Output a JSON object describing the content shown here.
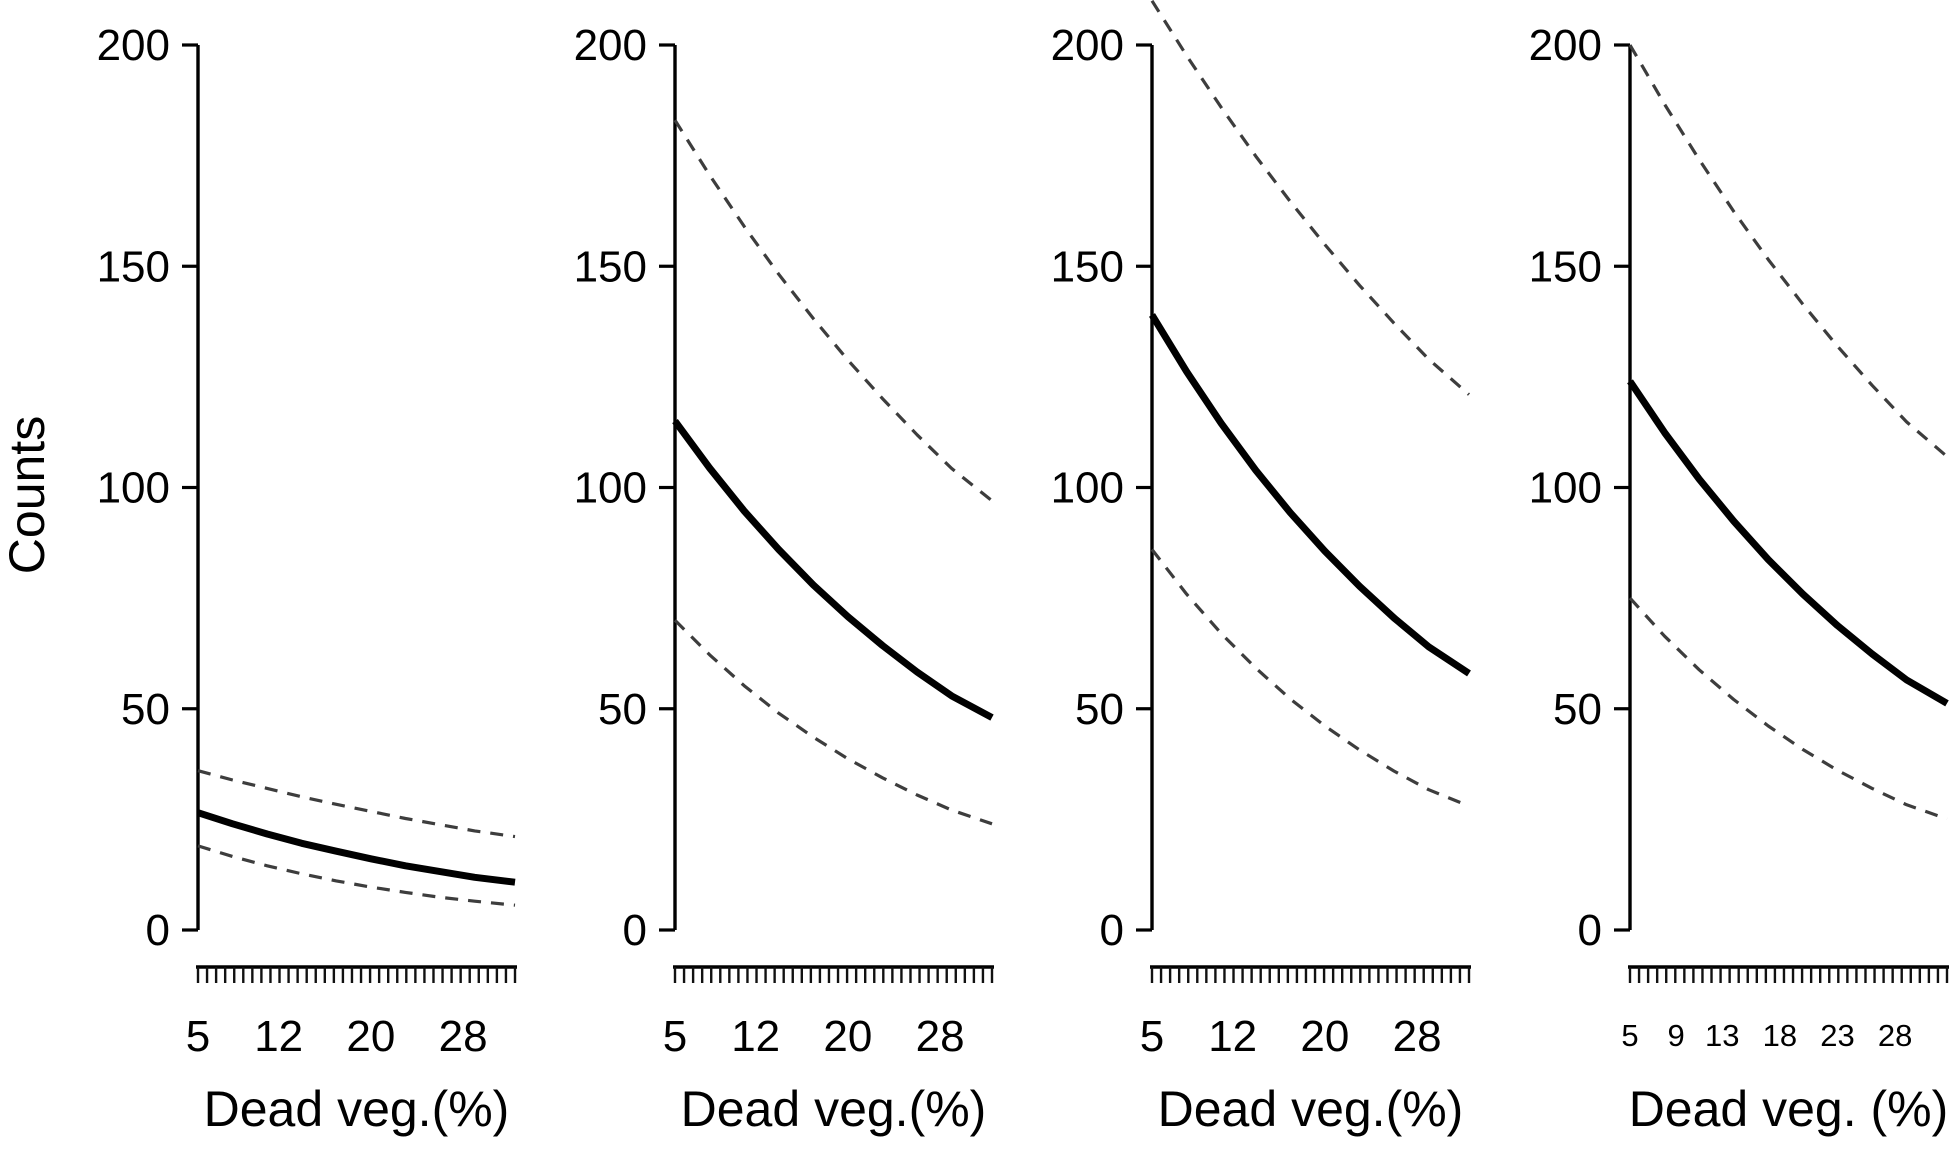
{
  "figure": {
    "ylabel": "Counts",
    "background_color": "#ffffff",
    "mean_line_color": "#000000",
    "ci_line_color": "#3d3d3d"
  },
  "axes": {
    "y_ticks": [
      0,
      50,
      100,
      150,
      200
    ],
    "y_range": [
      0,
      200
    ]
  },
  "chart_data": [
    {
      "type": "line",
      "panel": 1,
      "xlabel": "Dead veg.(%)",
      "ylabel": "Counts",
      "xlim": [
        5,
        32.5
      ],
      "ylim": [
        0,
        200
      ],
      "x_tick_labels": [
        5,
        12,
        20,
        28
      ],
      "y_ticks": [
        0,
        50,
        100,
        150,
        200
      ],
      "x": [
        5,
        8,
        11,
        14,
        17,
        20,
        23,
        26,
        29,
        32.5
      ],
      "series": [
        {
          "name": "predicted mean",
          "style": "solid",
          "values": [
            26.5,
            24.0,
            21.7,
            19.6,
            17.8,
            16.1,
            14.5,
            13.2,
            11.9,
            10.8
          ]
        },
        {
          "name": "upper 95% CI",
          "style": "dashed",
          "values": [
            36.0,
            33.9,
            32.0,
            30.1,
            28.4,
            26.8,
            25.2,
            23.8,
            22.4,
            21.1
          ]
        },
        {
          "name": "lower 95% CI",
          "style": "dashed",
          "values": [
            19.0,
            16.6,
            14.5,
            12.7,
            11.1,
            9.7,
            8.5,
            7.4,
            6.5,
            5.6
          ]
        }
      ]
    },
    {
      "type": "line",
      "panel": 2,
      "xlabel": "Dead veg.(%)",
      "ylabel": "Counts",
      "xlim": [
        5,
        32.5
      ],
      "ylim": [
        0,
        200
      ],
      "x_tick_labels": [
        5,
        12,
        20,
        28
      ],
      "y_ticks": [
        0,
        50,
        100,
        150,
        200
      ],
      "x": [
        5,
        8,
        11,
        14,
        17,
        20,
        23,
        26,
        29,
        32.5
      ],
      "series": [
        {
          "name": "predicted mean",
          "style": "solid",
          "values": [
            115.0,
            104.4,
            94.7,
            86.0,
            78.0,
            70.8,
            64.3,
            58.3,
            52.9,
            48.0
          ]
        },
        {
          "name": "upper 95% CI",
          "style": "dashed",
          "values": [
            183.0,
            170.6,
            159.0,
            148.2,
            138.2,
            128.8,
            120.1,
            111.9,
            104.3,
            97.0
          ]
        },
        {
          "name": "lower 95% CI",
          "style": "dashed",
          "values": [
            70.0,
            62.2,
            55.2,
            49.0,
            43.6,
            38.7,
            34.4,
            30.5,
            27.1,
            24.0
          ]
        }
      ]
    },
    {
      "type": "line",
      "panel": 3,
      "xlabel": "Dead veg.(%)",
      "ylabel": "Counts",
      "xlim": [
        5,
        32.5
      ],
      "ylim": [
        0,
        200
      ],
      "x_tick_labels": [
        5,
        12,
        20,
        28
      ],
      "y_ticks": [
        0,
        50,
        100,
        150,
        200
      ],
      "x": [
        5,
        8,
        11,
        14,
        17,
        20,
        23,
        26,
        29,
        32.5
      ],
      "series": [
        {
          "name": "predicted mean",
          "style": "solid",
          "values": [
            139.0,
            126.2,
            114.5,
            103.9,
            94.3,
            85.6,
            77.7,
            70.5,
            64.0,
            58.0
          ]
        },
        {
          "name": "upper 95% CI",
          "style": "dashed",
          "values": [
            210.0,
            197.6,
            185.9,
            174.9,
            164.6,
            154.9,
            145.7,
            137.1,
            129.0,
            121.0
          ]
        },
        {
          "name": "lower 95% CI",
          "style": "dashed",
          "values": [
            86.0,
            75.9,
            67.0,
            59.2,
            52.2,
            46.1,
            40.7,
            35.9,
            31.7,
            28.0
          ]
        }
      ]
    },
    {
      "type": "line",
      "panel": 4,
      "xlabel": "Dead veg. (%)",
      "ylabel": "Counts",
      "xlim": [
        5,
        32.5
      ],
      "ylim": [
        0,
        200
      ],
      "x_tick_labels": [
        5,
        9,
        13,
        18,
        23,
        28
      ],
      "y_ticks": [
        0,
        50,
        100,
        150,
        200
      ],
      "x": [
        5,
        8,
        11,
        14,
        17,
        20,
        23,
        26,
        29,
        32.5
      ],
      "series": [
        {
          "name": "predicted mean",
          "style": "solid",
          "values": [
            124.0,
            112.4,
            101.9,
            92.4,
            83.7,
            75.9,
            68.8,
            62.4,
            56.5,
            51.2
          ]
        },
        {
          "name": "upper 95% CI",
          "style": "dashed",
          "values": [
            200.0,
            186.6,
            174.1,
            162.4,
            151.5,
            141.4,
            131.9,
            123.1,
            114.8,
            107.0
          ]
        },
        {
          "name": "lower 95% CI",
          "style": "dashed",
          "values": [
            75.0,
            66.4,
            58.8,
            52.1,
            46.1,
            40.8,
            36.1,
            32.0,
            28.3,
            25.1
          ]
        }
      ]
    }
  ]
}
